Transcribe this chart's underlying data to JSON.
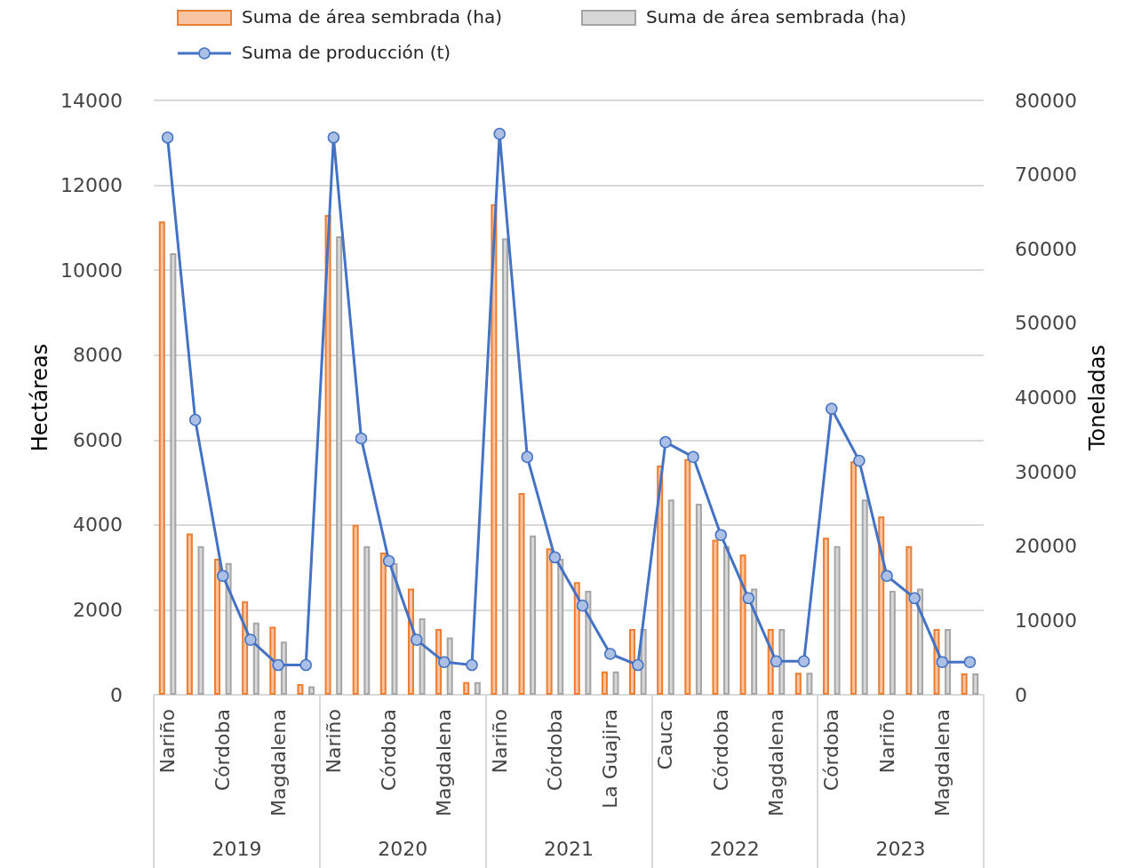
{
  "chart_data": {
    "type": "bar",
    "categories": [
      "Nariño",
      null,
      "Córdoba",
      null,
      "Magdalena",
      null,
      "Nariño",
      null,
      "Córdoba",
      null,
      "Magdalena",
      null,
      "Nariño",
      null,
      "Córdoba",
      null,
      "La Guajira",
      null,
      "Cauca",
      null,
      "Córdoba",
      null,
      "Magdalena",
      null,
      "Córdoba",
      null,
      "Nariño",
      null,
      "Magdalena",
      null
    ],
    "series": [
      {
        "name": "Suma de área sembrada (ha)",
        "color": "#ed7d31",
        "values": [
          11150,
          3800,
          3200,
          2200,
          1600,
          250,
          11300,
          4000,
          3350,
          2500,
          1550,
          300,
          11550,
          4750,
          3450,
          2650,
          550,
          1550,
          5400,
          5550,
          3650,
          3300,
          1550,
          520,
          3700,
          5500,
          4200,
          3500,
          1550,
          500
        ]
      },
      {
        "name": "Suma de área sembrada (ha)",
        "color": "#a5a5a5",
        "values": [
          10400,
          3500,
          3100,
          1700,
          1250,
          200,
          10800,
          3500,
          3100,
          1800,
          1350,
          300,
          10750,
          3750,
          3200,
          2450,
          550,
          1550,
          4600,
          4500,
          3500,
          2500,
          1550,
          520,
          3500,
          4600,
          2450,
          2500,
          1550,
          500
        ]
      },
      {
        "name": "Suma de producción (t)",
        "type": "line",
        "axis": "y2",
        "color": "#4472c4",
        "values": [
          75000,
          37000,
          16000,
          7400,
          4000,
          4000,
          75000,
          34500,
          18000,
          7400,
          4400,
          4000,
          75500,
          32000,
          18500,
          12000,
          5500,
          4000,
          34000,
          32000,
          21500,
          13000,
          4500,
          4500,
          38500,
          31500,
          16000,
          13000,
          4400,
          4400
        ]
      }
    ],
    "annotations": [
      "2019",
      "2020",
      "2021",
      "2022",
      "2023"
    ],
    "ylabel": "Hectáreas",
    "y2label": "Toneladas",
    "ylim": [
      0,
      14000
    ],
    "yticks": [
      0,
      2000,
      4000,
      6000,
      8000,
      10000,
      12000,
      14000
    ],
    "y2lim": [
      0,
      80000
    ],
    "y2ticks": [
      0,
      10000,
      20000,
      30000,
      40000,
      50000,
      60000,
      70000,
      80000
    ],
    "grid": "y",
    "legend": "top",
    "marker": "circle"
  }
}
